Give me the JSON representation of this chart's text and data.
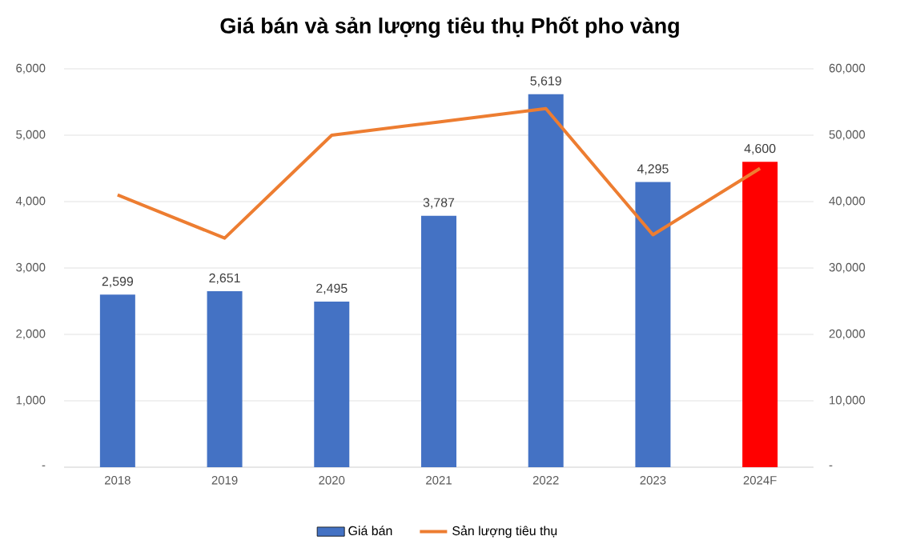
{
  "chart_data": {
    "type": "bar",
    "title": "Giá bán và sản lượng tiêu thụ Phốt pho vàng",
    "categories": [
      "2018",
      "2019",
      "2020",
      "2021",
      "2022",
      "2023",
      "2024F"
    ],
    "series": [
      {
        "name": "Giá bán",
        "color": "#4472c4",
        "colors": [
          "#4472c4",
          "#4472c4",
          "#4472c4",
          "#4472c4",
          "#4472c4",
          "#4472c4",
          "#ff0000"
        ],
        "values": [
          2599,
          2651,
          2495,
          3787,
          5619,
          4295,
          4600
        ],
        "value_labels": [
          "2,599",
          "2,651",
          "2,495",
          "3,787",
          "5,619",
          "4,295",
          "4,600"
        ]
      },
      {
        "name": "Sản lượng tiêu thụ",
        "type": "line",
        "axis": "y2",
        "color": "#ed7d31",
        "values": [
          41000,
          34500,
          50000,
          52000,
          54000,
          35000,
          45000
        ]
      }
    ],
    "ylim": [
      0,
      6000
    ],
    "yticks": [
      {
        "value": 0,
        "label": "-"
      },
      {
        "value": 1000,
        "label": "1,000"
      },
      {
        "value": 2000,
        "label": "2,000"
      },
      {
        "value": 3000,
        "label": "3,000"
      },
      {
        "value": 4000,
        "label": "4,000"
      },
      {
        "value": 5000,
        "label": "5,000"
      },
      {
        "value": 6000,
        "label": "6,000"
      }
    ],
    "y2lim": [
      0,
      60000
    ],
    "y2ticks": [
      {
        "value": 0,
        "label": "-"
      },
      {
        "value": 10000,
        "label": "10,000"
      },
      {
        "value": 20000,
        "label": "20,000"
      },
      {
        "value": 30000,
        "label": "30,000"
      },
      {
        "value": 40000,
        "label": "40,000"
      },
      {
        "value": 50000,
        "label": "50,000"
      },
      {
        "value": 60000,
        "label": "60,000"
      }
    ],
    "grid": "y",
    "legend": "bottom",
    "marker": "none",
    "line_style": "solid"
  }
}
